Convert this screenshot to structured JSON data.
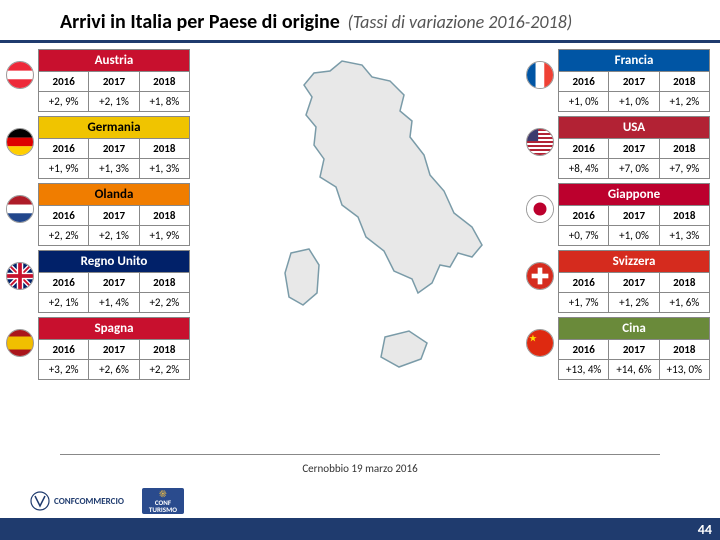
{
  "title": "Arrivi in Italia per Paese di origine",
  "subtitle": "(Tassi di variazione 2016-2018)",
  "years": [
    "2016",
    "2017",
    "2018"
  ],
  "header_colors": {
    "Austria": "#c8102e",
    "Germania": "#f0c400",
    "Olanda": "#f07d00",
    "Regno Unito": "#012169",
    "Spagna": "#c8102e",
    "Francia": "#0055a4",
    "USA": "#b22234",
    "Giappone": "#bc002d",
    "Svizzera": "#d52b1e",
    "Cina": "#6a8a3a"
  },
  "left": [
    {
      "name": "Austria",
      "vals": [
        "+2, 9%",
        "+2, 1%",
        "+1, 8%"
      ],
      "flag": "austria"
    },
    {
      "name": "Germania",
      "vals": [
        "+1, 9%",
        "+1, 3%",
        "+1, 3%"
      ],
      "flag": "germany"
    },
    {
      "name": "Olanda",
      "vals": [
        "+2, 2%",
        "+2, 1%",
        "+1, 9%"
      ],
      "flag": "netherlands"
    },
    {
      "name": "Regno Unito",
      "vals": [
        "+2, 1%",
        "+1, 4%",
        "+2, 2%"
      ],
      "flag": "uk"
    },
    {
      "name": "Spagna",
      "vals": [
        "+3, 2%",
        "+2, 6%",
        "+2, 2%"
      ],
      "flag": "spain"
    }
  ],
  "right": [
    {
      "name": "Francia",
      "vals": [
        "+1, 0%",
        "+1, 0%",
        "+1, 2%"
      ],
      "flag": "france"
    },
    {
      "name": "USA",
      "vals": [
        "+8, 4%",
        "+7, 0%",
        "+7, 9%"
      ],
      "flag": "usa"
    },
    {
      "name": "Giappone",
      "vals": [
        "+0, 7%",
        "+1, 0%",
        "+1, 3%"
      ],
      "flag": "japan"
    },
    {
      "name": "Svizzera",
      "vals": [
        "+1, 7%",
        "+1, 2%",
        "+1, 6%"
      ],
      "flag": "swiss"
    },
    {
      "name": "Cina",
      "vals": [
        "+13, 4%",
        "+14, 6%",
        "+13, 0%"
      ],
      "flag": "china"
    }
  ],
  "map_fill": "#e8e8e8",
  "map_stroke": "#7a9ba8",
  "footer_text": "Cernobbio 19 marzo 2016",
  "page_number": "44",
  "logo1_text": "CONFCOMMERCIO",
  "logo2_text1": "CONF",
  "logo2_text2": "TURISMO"
}
